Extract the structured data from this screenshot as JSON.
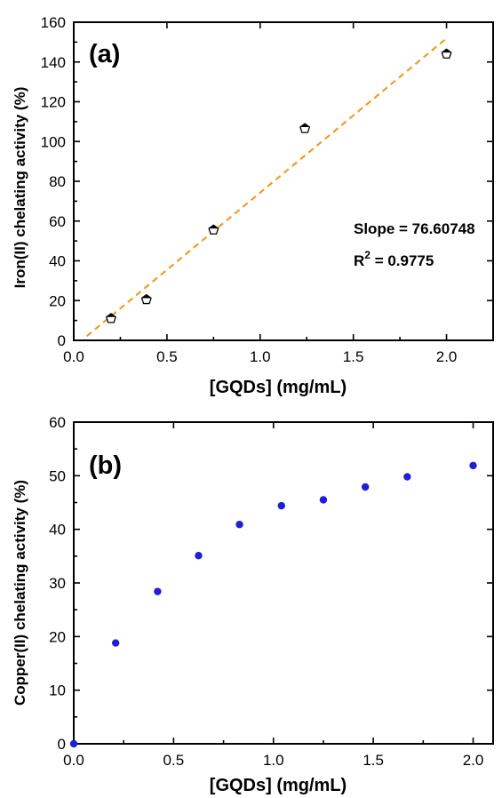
{
  "chart_data": [
    {
      "type": "scatter",
      "panel_label": "(a)",
      "xlabel": "[GQDs] (mg/mL)",
      "ylabel": "Iron(II) chelating activity (%)",
      "xlim": [
        0,
        2.25
      ],
      "ylim": [
        0,
        160
      ],
      "x_ticks": [
        "0.0",
        "0.5",
        "1.0",
        "1.5",
        "2.0"
      ],
      "y_ticks": [
        "0",
        "20",
        "40",
        "60",
        "80",
        "100",
        "120",
        "140",
        "160"
      ],
      "series": [
        {
          "x": [
            0.2,
            0.39,
            0.75,
            1.24,
            2.0
          ],
          "y": [
            11,
            20.5,
            55.5,
            106.5,
            144
          ],
          "marker": "pentagon",
          "color": "#000000"
        }
      ],
      "fit_line": {
        "x": [
          0.07,
          2.0
        ],
        "y": [
          2.1,
          151.9
        ],
        "color": "#f59a23",
        "style": "dashed"
      },
      "annotations": {
        "slope": "Slope = 76.60748",
        "r2_prefix": "R",
        "r2_sup": "2",
        "r2_value": " = 0.9775"
      },
      "grid": false
    },
    {
      "type": "scatter",
      "panel_label": "(b)",
      "xlabel": "[GQDs] (mg/mL)",
      "ylabel": "Copper(II) chelating activity (%)",
      "xlim": [
        0,
        2.1
      ],
      "ylim": [
        0,
        60
      ],
      "x_ticks": [
        "0.0",
        "0.5",
        "1.0",
        "1.5",
        "2.0"
      ],
      "y_ticks": [
        "0",
        "10",
        "20",
        "30",
        "40",
        "50",
        "60"
      ],
      "series": [
        {
          "x": [
            0.0,
            0.21,
            0.42,
            0.625,
            0.83,
            1.04,
            1.25,
            1.46,
            1.67,
            2.0
          ],
          "y": [
            0,
            18.8,
            28.4,
            35.1,
            40.9,
            44.4,
            45.5,
            47.9,
            49.8,
            51.9
          ],
          "marker": "circle",
          "color": "#1f1fd6"
        }
      ],
      "grid": false
    }
  ]
}
